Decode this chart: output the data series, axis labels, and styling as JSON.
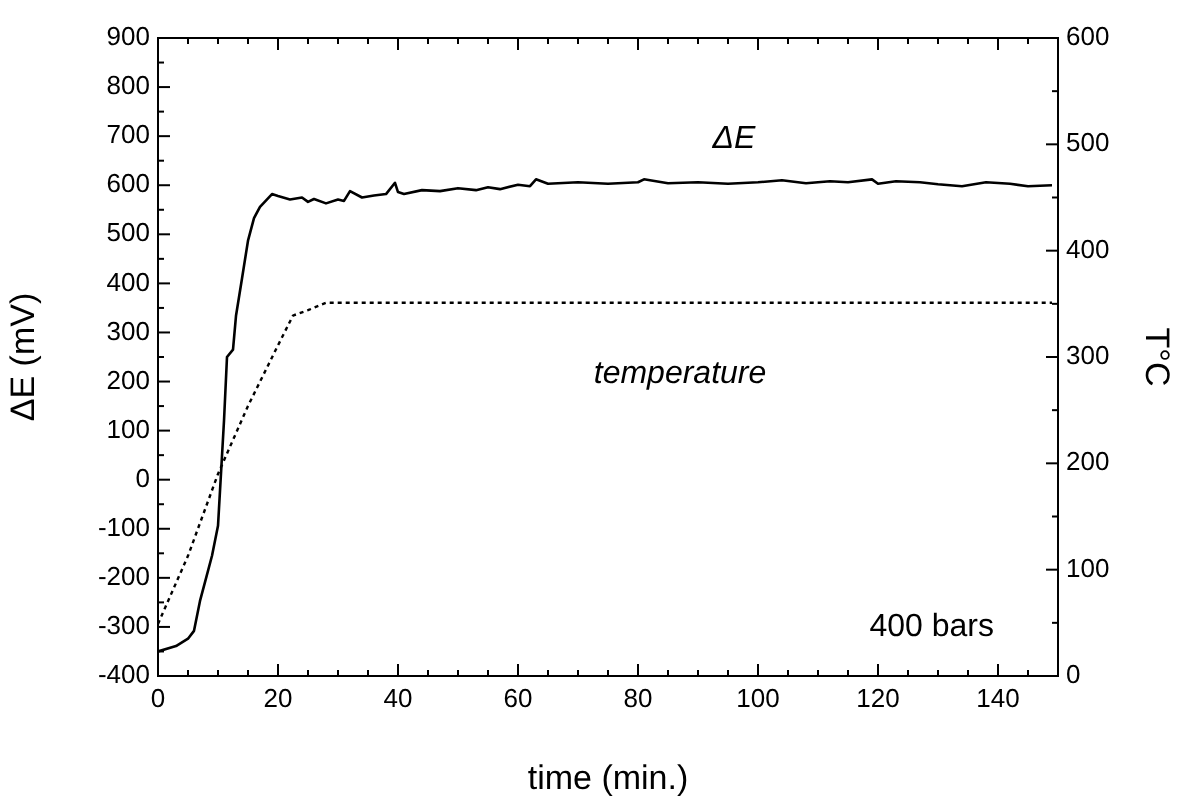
{
  "chart_data": {
    "type": "line",
    "xlabel": "time (min.)",
    "ylabel": "ΔE (mV)",
    "y2label": "T°C",
    "annotations": [
      "400 bars"
    ],
    "grid": false,
    "legend": false,
    "marker": "none",
    "xlim": [
      0,
      150
    ],
    "ylim": [
      -400,
      900
    ],
    "y2lim": [
      0,
      600
    ],
    "xticks": [
      0,
      {
        "value": 5,
        "label": null
      },
      {
        "value": 10,
        "label": null
      },
      {
        "value": 15,
        "label": null
      },
      20,
      {
        "value": 25,
        "label": null
      },
      {
        "value": 30,
        "label": null
      },
      {
        "value": 35,
        "label": null
      },
      40,
      {
        "value": 45,
        "label": null
      },
      {
        "value": 50,
        "label": null
      },
      {
        "value": 55,
        "label": null
      },
      60,
      {
        "value": 65,
        "label": null
      },
      {
        "value": 70,
        "label": null
      },
      {
        "value": 75,
        "label": null
      },
      80,
      {
        "value": 85,
        "label": null
      },
      {
        "value": 90,
        "label": null
      },
      {
        "value": 95,
        "label": null
      },
      100,
      {
        "value": 105,
        "label": null
      },
      {
        "value": 110,
        "label": null
      },
      {
        "value": 115,
        "label": null
      },
      120,
      {
        "value": 125,
        "label": null
      },
      {
        "value": 130,
        "label": null
      },
      {
        "value": 135,
        "label": null
      },
      140,
      {
        "value": 145,
        "label": null
      }
    ],
    "yticks": [
      -400,
      {
        "value": -350,
        "label": null
      },
      -300,
      {
        "value": -250,
        "label": null
      },
      -200,
      {
        "value": -150,
        "label": null
      },
      -100,
      {
        "value": -50,
        "label": null
      },
      0,
      {
        "value": 50,
        "label": null
      },
      100,
      {
        "value": 150,
        "label": null
      },
      200,
      {
        "value": 250,
        "label": null
      },
      300,
      {
        "value": 350,
        "label": null
      },
      400,
      {
        "value": 450,
        "label": null
      },
      500,
      {
        "value": 550,
        "label": null
      },
      600,
      {
        "value": 650,
        "label": null
      },
      700,
      {
        "value": 750,
        "label": null
      },
      800,
      {
        "value": 850,
        "label": null
      },
      900
    ],
    "y2ticks": [
      0,
      {
        "value": 50,
        "label": null
      },
      100,
      {
        "value": 150,
        "label": null
      },
      200,
      {
        "value": 250,
        "label": null
      },
      300,
      {
        "value": 350,
        "label": null
      },
      400,
      {
        "value": 450,
        "label": null
      },
      500,
      {
        "value": 550,
        "label": null
      },
      600
    ],
    "series": [
      {
        "name": "ΔE",
        "color": "#000000",
        "line_style": "solid",
        "x": [
          0,
          3,
          5,
          6,
          7,
          8,
          9,
          10,
          10.5,
          11,
          11.5,
          12.5,
          13,
          14,
          15,
          16,
          17,
          19,
          20,
          22,
          24,
          25,
          26,
          28,
          30,
          31,
          32,
          34,
          36,
          38,
          39.5,
          40,
          41,
          44,
          47,
          50,
          53,
          55,
          57,
          60,
          62,
          63,
          65,
          70,
          75,
          80,
          81,
          85,
          90,
          95,
          100,
          104,
          108,
          112,
          115,
          119,
          120,
          123,
          127,
          130,
          134,
          138,
          142,
          145,
          149
        ],
        "values": [
          -350,
          -339,
          -324,
          -308,
          -247,
          -201,
          -155,
          -94,
          13,
          120,
          250,
          265,
          334,
          410,
          487,
          533,
          556,
          582,
          578,
          571,
          575,
          566,
          572,
          563,
          571,
          568,
          588,
          575,
          579,
          582,
          605,
          586,
          582,
          590,
          588,
          594,
          590,
          596,
          592,
          601,
          598,
          612,
          603,
          606,
          603,
          606,
          612,
          604,
          606,
          603,
          606,
          610,
          604,
          608,
          606,
          612,
          603,
          608,
          606,
          602,
          598,
          606,
          603,
          598,
          600
        ]
      },
      {
        "name": "temperature",
        "color": "#000000",
        "line_style": "dotted",
        "axis": "y2",
        "x": [
          0,
          5,
          10,
          15,
          20,
          22.5,
          25,
          28,
          149
        ],
        "values": [
          49,
          113,
          190,
          254,
          311,
          339,
          344,
          351,
          351
        ]
      }
    ]
  }
}
